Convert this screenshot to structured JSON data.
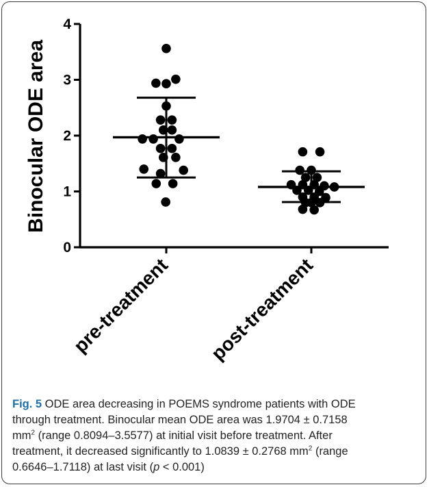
{
  "chart_data": {
    "type": "scatter",
    "ylabel": "Binocular ODE area",
    "xlabel": "",
    "ylim": [
      0,
      4
    ],
    "yticks": [
      0,
      1,
      2,
      3,
      4
    ],
    "grid": false,
    "categories": [
      "pre-treatment",
      "post-treatment"
    ],
    "groups": [
      {
        "category": "pre-treatment",
        "mean": 1.97,
        "sd_upper": 2.68,
        "sd_lower": 1.25,
        "points": [
          {
            "x_offset": 0.0,
            "y": 3.56
          },
          {
            "x_offset": -0.36,
            "y": 2.94
          },
          {
            "x_offset": 0.0,
            "y": 2.93
          },
          {
            "x_offset": 0.33,
            "y": 3.01
          },
          {
            "x_offset": 0.0,
            "y": 2.53
          },
          {
            "x_offset": -0.2,
            "y": 2.28
          },
          {
            "x_offset": 0.2,
            "y": 2.28
          },
          {
            "x_offset": -0.1,
            "y": 2.1
          },
          {
            "x_offset": 0.2,
            "y": 2.1
          },
          {
            "x_offset": -0.83,
            "y": 1.94
          },
          {
            "x_offset": -0.45,
            "y": 1.94
          },
          {
            "x_offset": 0.45,
            "y": 1.94
          },
          {
            "x_offset": -0.2,
            "y": 1.77
          },
          {
            "x_offset": 0.2,
            "y": 1.77
          },
          {
            "x_offset": -0.1,
            "y": 1.61
          },
          {
            "x_offset": 0.33,
            "y": 1.61
          },
          {
            "x_offset": -0.78,
            "y": 1.4
          },
          {
            "x_offset": -0.2,
            "y": 1.32
          },
          {
            "x_offset": 0.6,
            "y": 1.38
          },
          {
            "x_offset": -0.35,
            "y": 1.14
          },
          {
            "x_offset": 0.23,
            "y": 1.14
          },
          {
            "x_offset": -0.02,
            "y": 0.81
          }
        ]
      },
      {
        "category": "post-treatment",
        "mean": 1.08,
        "sd_upper": 1.36,
        "sd_lower": 0.81,
        "points": [
          {
            "x_offset": -0.3,
            "y": 1.71
          },
          {
            "x_offset": 0.3,
            "y": 1.71
          },
          {
            "x_offset": -0.4,
            "y": 1.38
          },
          {
            "x_offset": 0.0,
            "y": 1.38
          },
          {
            "x_offset": -0.2,
            "y": 1.25
          },
          {
            "x_offset": 0.2,
            "y": 1.25
          },
          {
            "x_offset": -0.7,
            "y": 1.12
          },
          {
            "x_offset": -0.3,
            "y": 1.12
          },
          {
            "x_offset": 0.1,
            "y": 1.12
          },
          {
            "x_offset": 0.45,
            "y": 1.1
          },
          {
            "x_offset": 0.8,
            "y": 1.08
          },
          {
            "x_offset": -0.5,
            "y": 1.02
          },
          {
            "x_offset": -0.1,
            "y": 1.02
          },
          {
            "x_offset": 0.28,
            "y": 1.0
          },
          {
            "x_offset": -0.3,
            "y": 0.9
          },
          {
            "x_offset": 0.1,
            "y": 0.9
          },
          {
            "x_offset": 0.5,
            "y": 0.89
          },
          {
            "x_offset": -0.2,
            "y": 0.8
          },
          {
            "x_offset": 0.0,
            "y": 0.8
          },
          {
            "x_offset": 0.3,
            "y": 0.8
          },
          {
            "x_offset": -0.3,
            "y": 0.68
          },
          {
            "x_offset": 0.1,
            "y": 0.67
          }
        ]
      }
    ]
  },
  "caption": {
    "fig_label": "Fig. 5",
    "line1": " ODE area decreasing in POEMS syndrome patients with ODE",
    "line2": "through treatment. Binocular mean ODE area was 1.9704 ± 0.7158",
    "line3_pre": "mm",
    "line3_sup": "2",
    "line3_post": " (range 0.8094–3.5577) at initial visit before treatment. After",
    "line4_pre": "treatment, it decreased significantly to 1.0839 ± 0.2768 mm",
    "line4_sup": "2",
    "line4_post": " (range",
    "line5_pre": "0.6646–1.7118) at last visit (",
    "line5_italic": "p",
    "line5_post": " < 0.001)"
  },
  "colors": {
    "marker": "#000000",
    "axis": "#000000",
    "fig_label": "#1f6fa6",
    "frame": "#3a3a3a"
  }
}
